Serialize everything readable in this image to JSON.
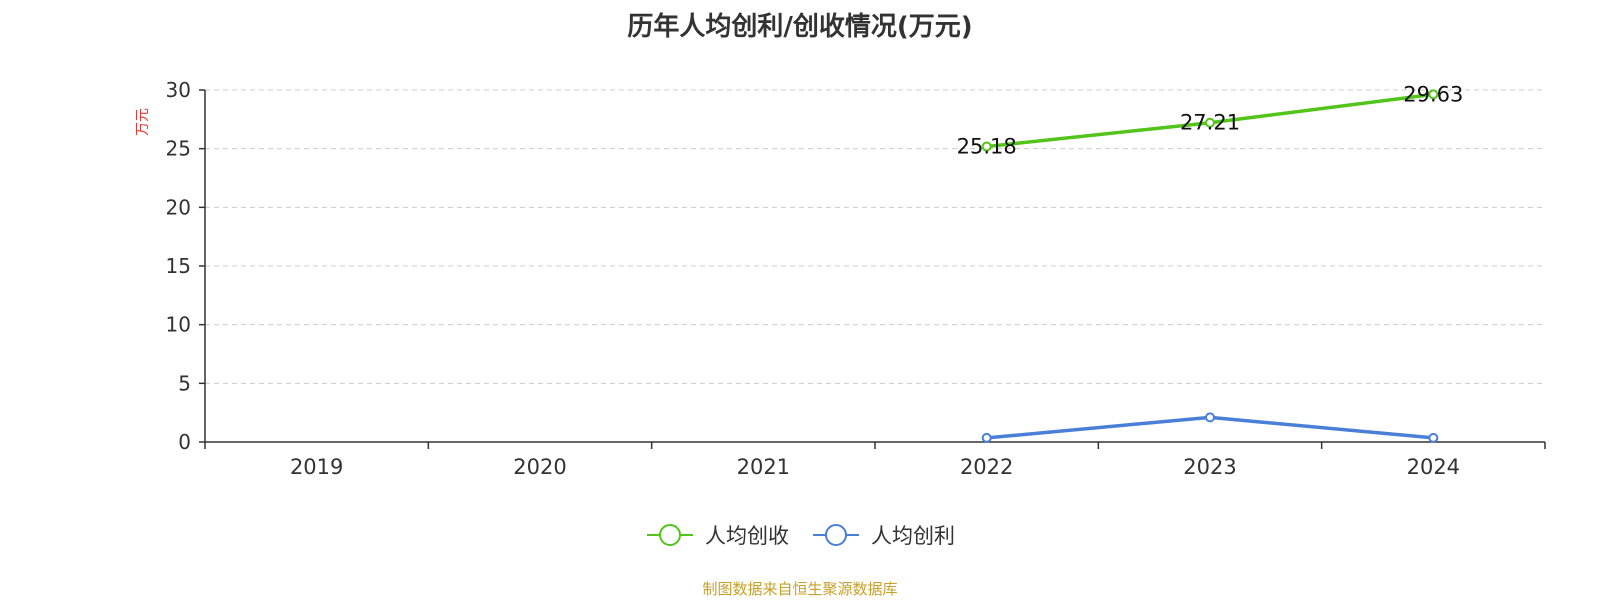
{
  "chart_data": {
    "type": "line",
    "title": "历年人均创利/创收情况(万元)",
    "ylabel": "万元",
    "categories": [
      "2019",
      "2020",
      "2021",
      "2022",
      "2023",
      "2024"
    ],
    "ylim": [
      0,
      30
    ],
    "yticks": [
      "0",
      "5",
      "10",
      "15",
      "20",
      "25",
      "30"
    ],
    "grid": true,
    "legend_position": "bottom",
    "series": [
      {
        "name": "人均创收",
        "color": "#52c41a",
        "values": [
          null,
          null,
          null,
          25.18,
          27.21,
          29.63
        ],
        "labels": [
          "",
          "",
          "",
          "25.18",
          "27.21",
          "29.63"
        ]
      },
      {
        "name": "人均创利",
        "color": "#4a7fd8",
        "values": [
          null,
          null,
          null,
          0.35,
          2.1,
          0.35
        ],
        "labels": [
          "",
          "",
          "",
          "",
          "",
          ""
        ]
      }
    ]
  },
  "footer": {
    "source": "制图数据来自恒生聚源数据库"
  }
}
